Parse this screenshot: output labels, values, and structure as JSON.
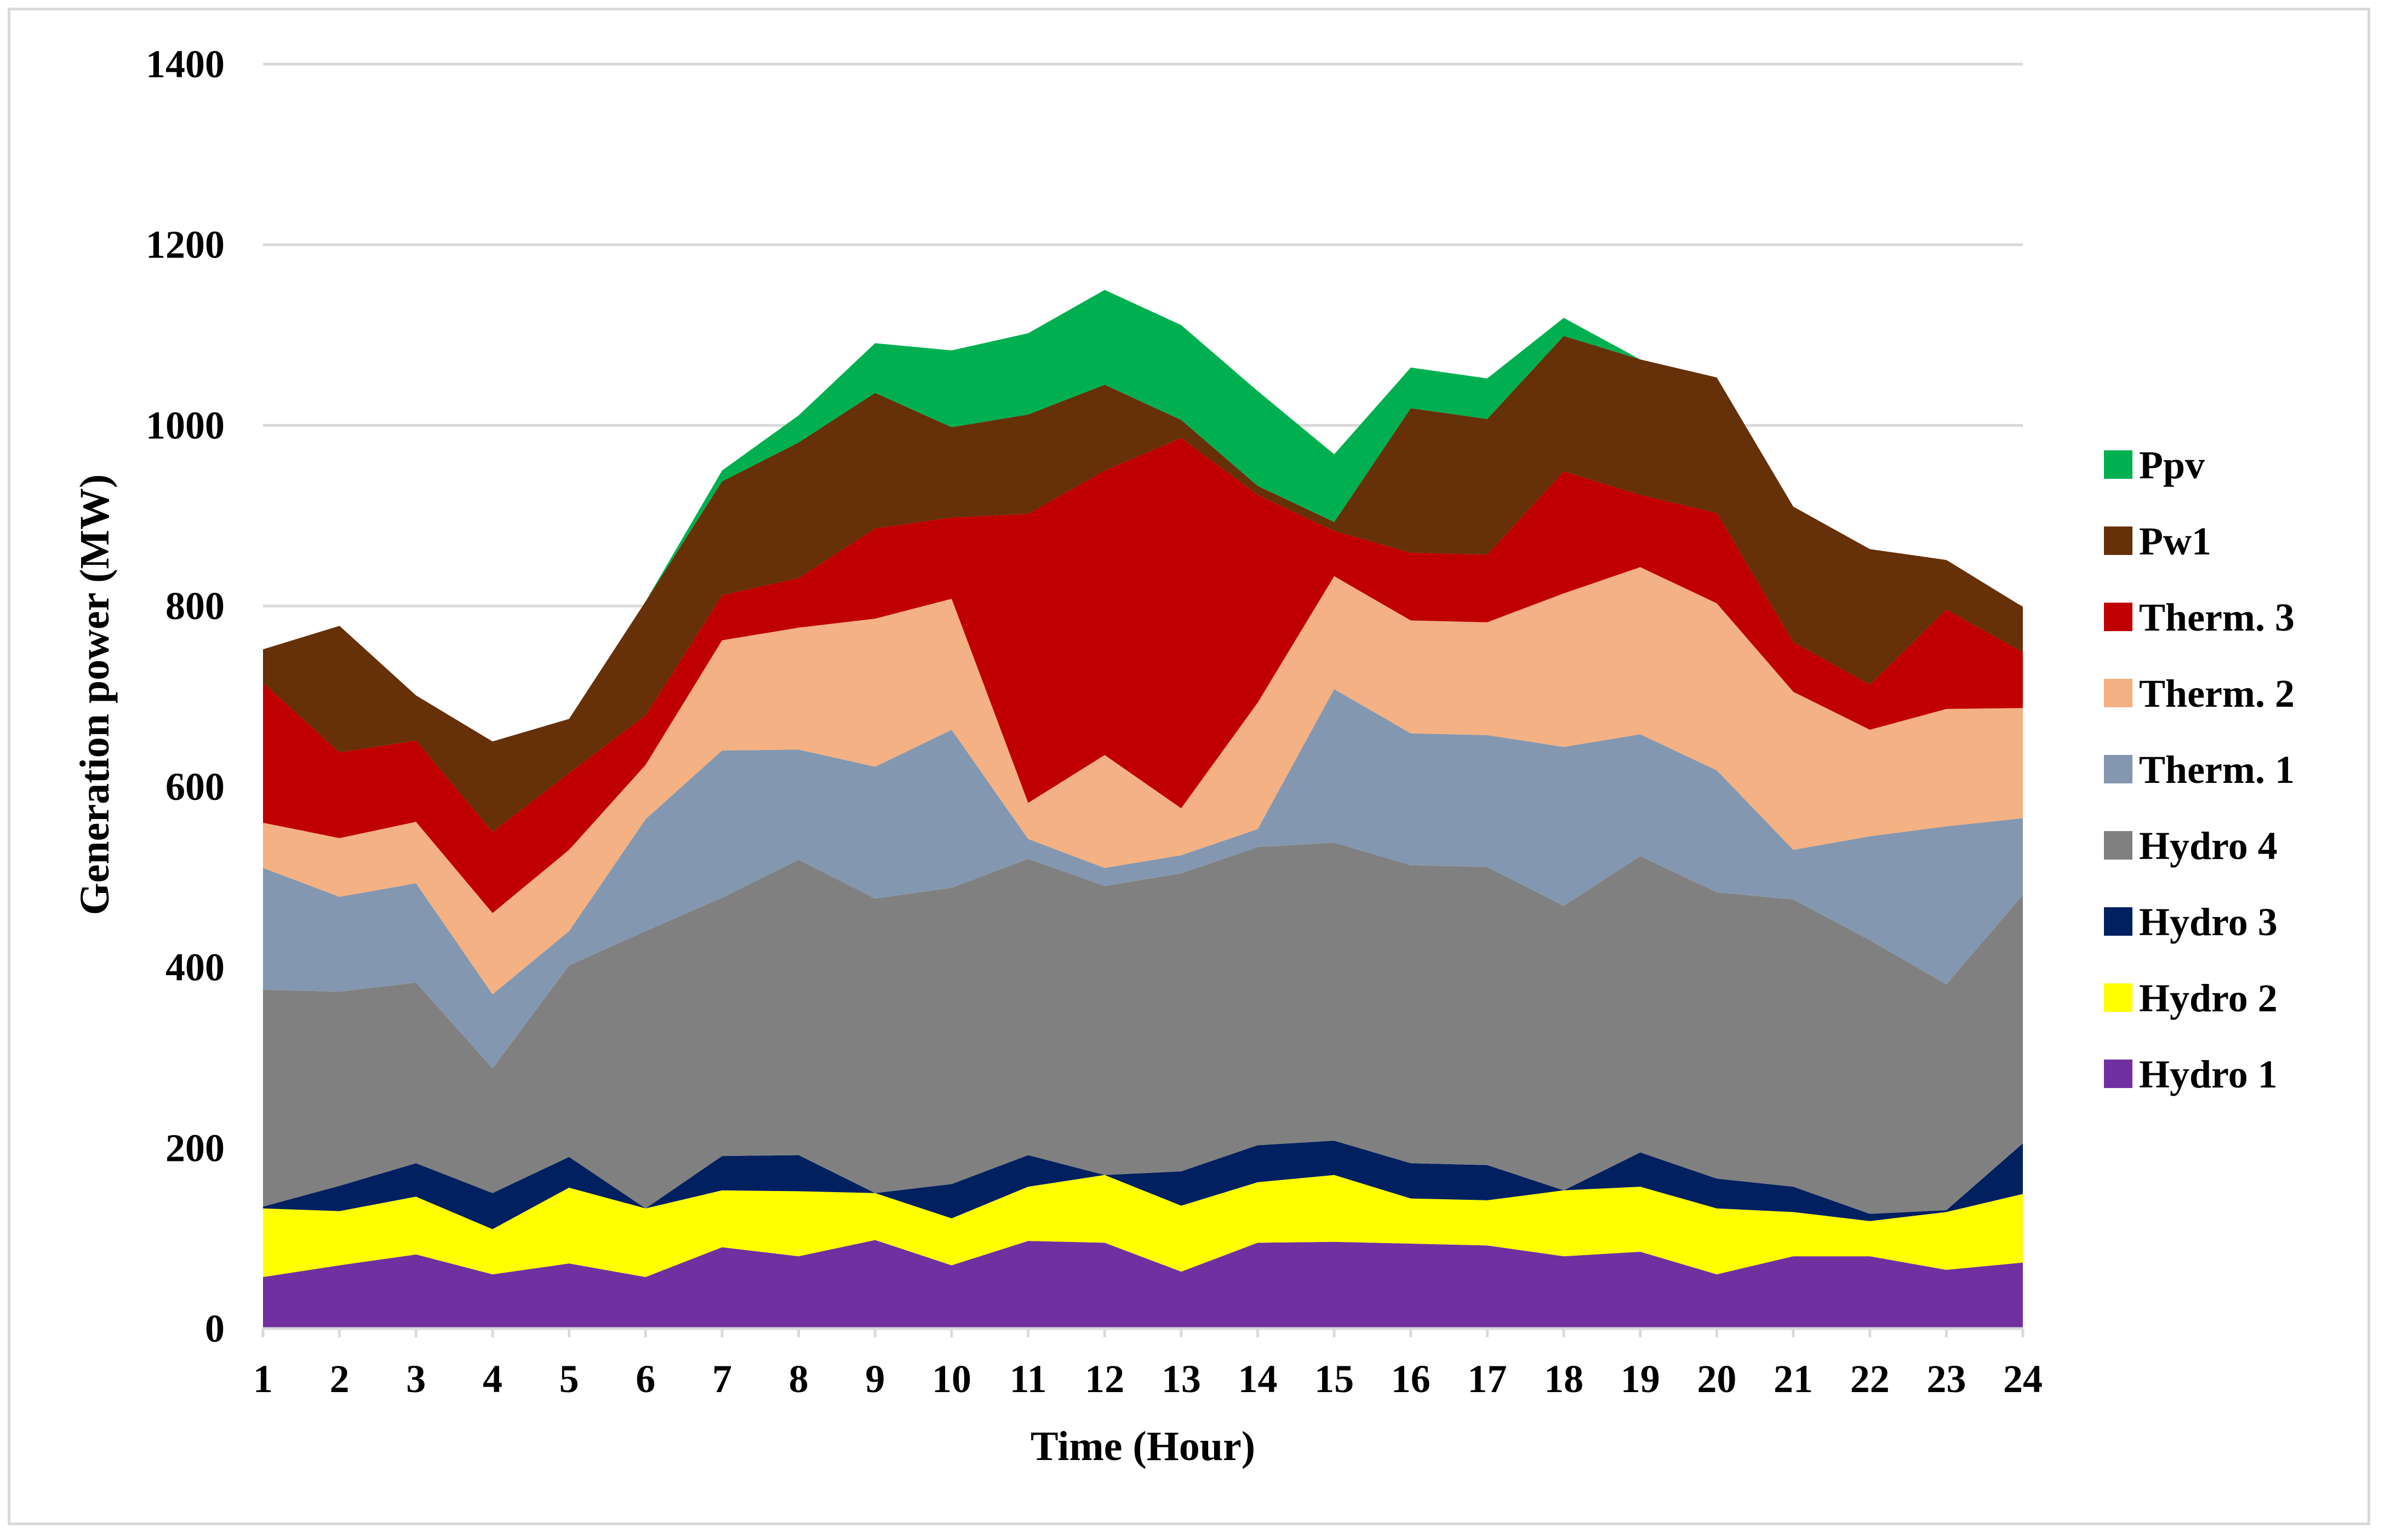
{
  "chart_data": {
    "type": "area",
    "stacked": true,
    "title": "",
    "xlabel": "Time (Hour)",
    "ylabel": "Generation power (MW)",
    "ylim": [
      0,
      1400
    ],
    "yticks": [
      0,
      200,
      400,
      600,
      800,
      1000,
      1200,
      1400
    ],
    "categories": [
      "1",
      "2",
      "3",
      "4",
      "5",
      "6",
      "7",
      "8",
      "9",
      "10",
      "11",
      "12",
      "13",
      "14",
      "15",
      "16",
      "17",
      "18",
      "19",
      "20",
      "21",
      "22",
      "23",
      "24"
    ],
    "grid": true,
    "legend_position": "right",
    "series": [
      {
        "name": "Hydro 1",
        "color": "#7030a0",
        "values": [
          57,
          70,
          82,
          60,
          72,
          57,
          90,
          80,
          98,
          70,
          97,
          95,
          63,
          95,
          96,
          94,
          92,
          80,
          85,
          60,
          80,
          80,
          65,
          73
        ]
      },
      {
        "name": "Hydro 2",
        "color": "#ffff00",
        "values": [
          76,
          60,
          64,
          50,
          84,
          76,
          63,
          72,
          52,
          52,
          60,
          75,
          73,
          67,
          74,
          50,
          50,
          73,
          72,
          73,
          49,
          39,
          64,
          76
        ]
      },
      {
        "name": "Hydro 3",
        "color": "#002060",
        "values": [
          2,
          28,
          37,
          40,
          34,
          0,
          38,
          40,
          0,
          38,
          35,
          0,
          38,
          41,
          38,
          39,
          39,
          0,
          38,
          33,
          28,
          8,
          2,
          56
        ]
      },
      {
        "name": "Hydro 4",
        "color": "#808080",
        "values": [
          240,
          215,
          200,
          138,
          212,
          307,
          286,
          327,
          326,
          328,
          328,
          320,
          330,
          330,
          330,
          330,
          330,
          315,
          328,
          317,
          318,
          303,
          250,
          275
        ]
      },
      {
        "name": "Therm. 1",
        "color": "#8497b0",
        "values": [
          135,
          105,
          110,
          82,
          38,
          124,
          163,
          122,
          146,
          175,
          22,
          20,
          20,
          20,
          170,
          146,
          146,
          176,
          135,
          135,
          55,
          115,
          175,
          85
        ]
      },
      {
        "name": "Therm. 2",
        "color": "#f4b183",
        "values": [
          50,
          65,
          68,
          90,
          90,
          60,
          122,
          135,
          164,
          145,
          40,
          125,
          52,
          140,
          125,
          125,
          125,
          170,
          185,
          185,
          175,
          118,
          130,
          122
        ]
      },
      {
        "name": "Therm. 3",
        "color": "#c00000",
        "values": [
          155,
          95,
          90,
          90,
          85,
          55,
          50,
          55,
          100,
          90,
          320,
          315,
          410,
          230,
          50,
          75,
          75,
          135,
          80,
          100,
          55,
          50,
          110,
          62
        ]
      },
      {
        "name": "Pw1",
        "color": "#663008",
        "values": [
          37,
          140,
          50,
          100,
          60,
          126,
          126,
          150,
          150,
          100,
          110,
          95,
          20,
          10,
          10,
          160,
          150,
          150,
          150,
          150,
          150,
          150,
          55,
          50
        ]
      },
      {
        "name": "Ppv",
        "color": "#00b050",
        "values": [
          0,
          0,
          0,
          0,
          0,
          0,
          12,
          30,
          55,
          85,
          90,
          105,
          105,
          105,
          75,
          45,
          45,
          20,
          0,
          0,
          0,
          0,
          0,
          0
        ]
      }
    ]
  }
}
